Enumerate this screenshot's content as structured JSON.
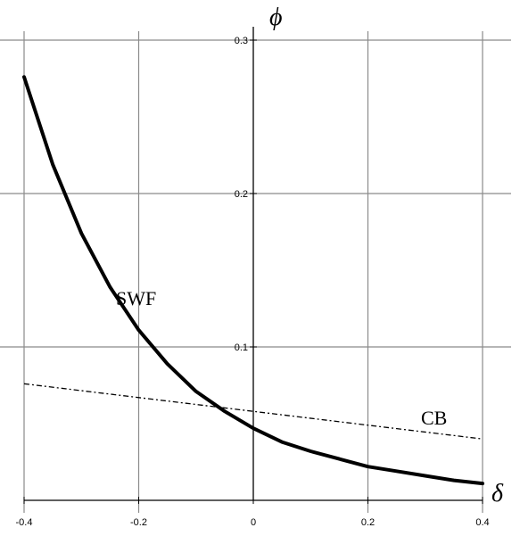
{
  "chart_data": {
    "type": "line",
    "xlabel": "δ",
    "ylabel": "ϕ",
    "xlim": [
      -0.4,
      0.4
    ],
    "ylim": [
      0,
      0.3
    ],
    "grid": true,
    "x_ticks": [
      {
        "value": -0.4,
        "label": "-0.4"
      },
      {
        "value": -0.2,
        "label": "-0.2"
      },
      {
        "value": 0,
        "label": "0"
      },
      {
        "value": 0.2,
        "label": "0.2"
      },
      {
        "value": 0.4,
        "label": "0.4"
      }
    ],
    "y_ticks": [
      {
        "value": 0.1,
        "label": "0.1"
      },
      {
        "value": 0.2,
        "label": "0.2"
      },
      {
        "value": 0.3,
        "label": "0.3"
      }
    ],
    "series": [
      {
        "name": "SWF",
        "style": "solid-thick",
        "x": [
          -0.4,
          -0.35,
          -0.3,
          -0.25,
          -0.2,
          -0.15,
          -0.1,
          -0.05,
          0,
          0.05,
          0.1,
          0.15,
          0.2,
          0.25,
          0.3,
          0.35,
          0.4
        ],
        "y": [
          0.276,
          0.219,
          0.174,
          0.139,
          0.111,
          0.089,
          0.071,
          0.058,
          0.047,
          0.038,
          0.032,
          0.027,
          0.022,
          0.019,
          0.016,
          0.013,
          0.011
        ]
      },
      {
        "name": "CB",
        "style": "dashed",
        "x": [
          -0.4,
          0.4
        ],
        "y": [
          0.076,
          0.04
        ]
      }
    ]
  }
}
